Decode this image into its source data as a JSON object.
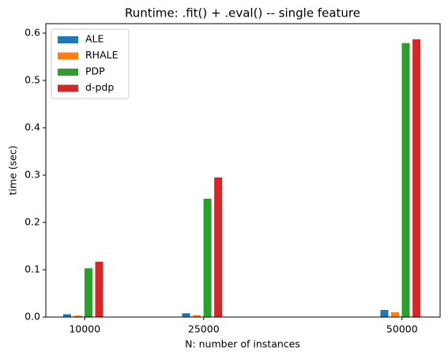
{
  "chart_data": {
    "type": "bar",
    "title": "Runtime: .fit() + .eval() -- single feature",
    "xlabel": "N: number of instances",
    "ylabel": "time (sec)",
    "x": [
      10000,
      25000,
      50000
    ],
    "series": [
      {
        "name": "ALE",
        "color": "#1f77b4",
        "values": [
          0.006,
          0.008,
          0.015
        ]
      },
      {
        "name": "RHALE",
        "color": "#ff7f0e",
        "values": [
          0.003,
          0.004,
          0.01
        ]
      },
      {
        "name": "PDP",
        "color": "#2ca02c",
        "values": [
          0.103,
          0.25,
          0.579
        ]
      },
      {
        "name": "d-pdp",
        "color": "#d62728",
        "values": [
          0.117,
          0.295,
          0.587
        ]
      }
    ],
    "xlim": [
      5100,
      54800
    ],
    "xticks": [
      10000,
      25000,
      50000
    ],
    "ylim": [
      0,
      0.62
    ],
    "yticks": [
      0.0,
      0.1,
      0.2,
      0.3,
      0.4,
      0.5,
      0.6
    ],
    "legend": "upper left",
    "grid": false
  }
}
